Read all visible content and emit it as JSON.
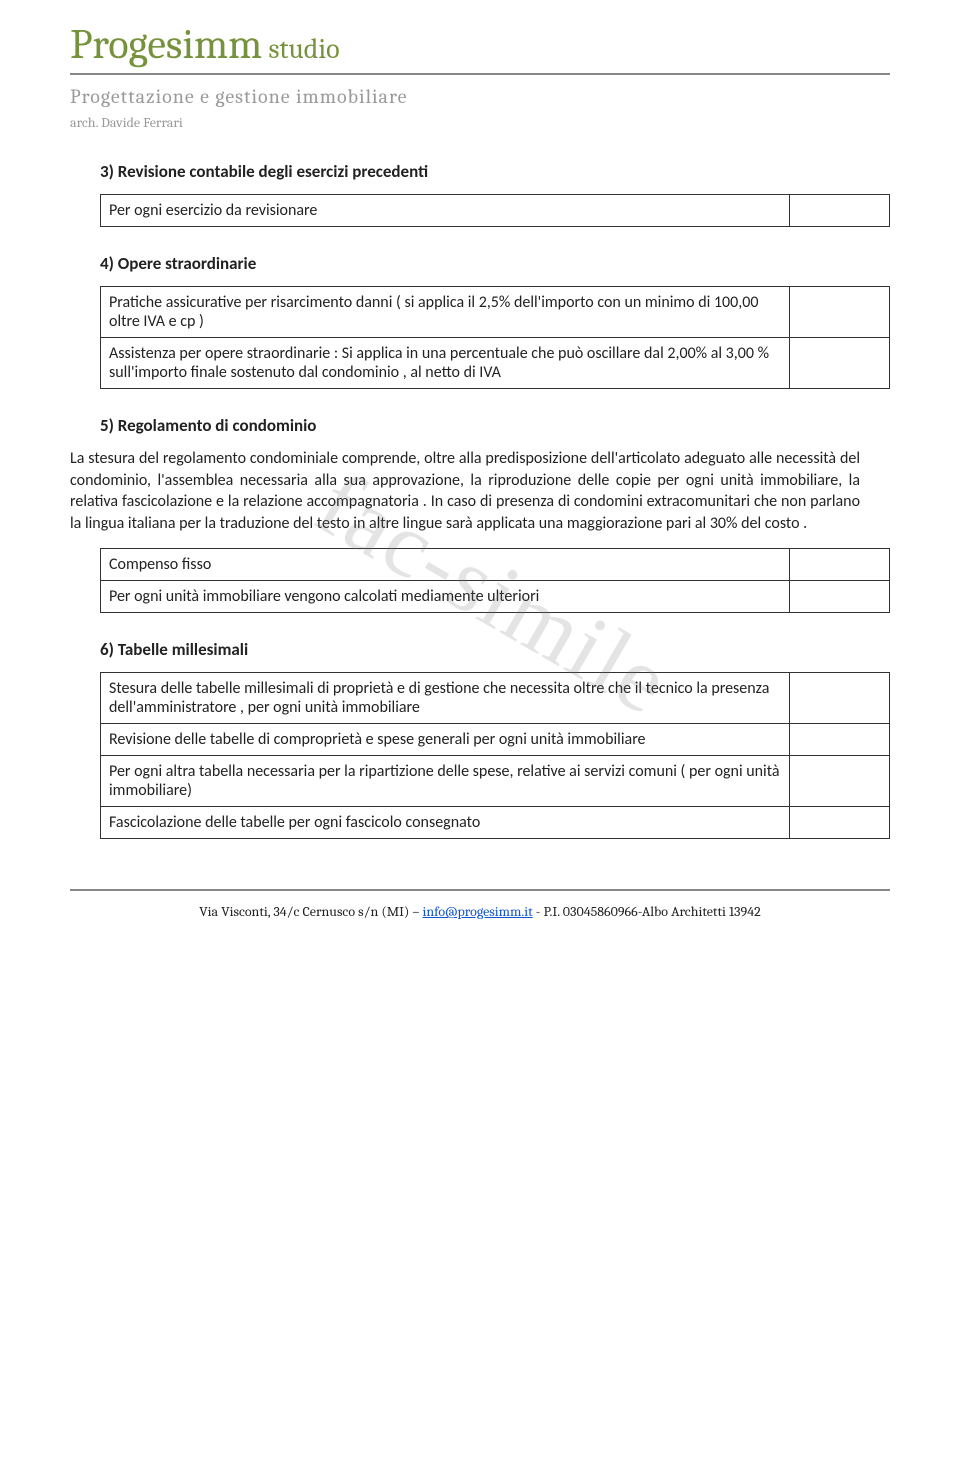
{
  "colors": {
    "accent_green": "#76923c",
    "gray_text": "#9a9a9a",
    "body_text": "#222222",
    "link_blue": "#1155cc",
    "border": "#333333",
    "watermark": "rgba(120,120,120,0.20)"
  },
  "header": {
    "logo_main": "Progesimm",
    "logo_sub": " studio",
    "tagline": "Progettazione  e  gestione  immobiliare",
    "author": "arch. Davide Ferrari"
  },
  "watermark": "fac-simile",
  "sections": {
    "s3": {
      "title": "3)   Revisione contabile degli esercizi precedenti",
      "rows": [
        {
          "text": "Per ogni esercizio da revisionare",
          "value": ""
        }
      ]
    },
    "s4": {
      "title": "4)   Opere straordinarie",
      "rows": [
        {
          "text": "Pratiche assicurative per risarcimento danni ( si applica il 2,5% dell'importo con un minimo di 100,00 oltre IVA e cp )",
          "value": ""
        },
        {
          "text": "Assistenza per opere straordinarie : Si applica in una percentuale che può oscillare dal 2,00% al 3,00 % sull'importo finale sostenuto dal condominio , al netto di IVA",
          "value": ""
        }
      ]
    },
    "s5": {
      "title": "5)   Regolamento di condominio",
      "body": "La stesura del regolamento condominiale comprende, oltre alla predisposizione dell'articolato adeguato alle necessità  del condominio, l'assemblea necessaria alla sua approvazione, la riproduzione delle copie per ogni unità immobiliare, la relativa fascicolazione e la relazione accompagnatoria . In caso di presenza di condomini extracomunitari che non parlano la lingua italiana per la traduzione del testo in altre lingue sarà applicata una maggiorazione pari al 30% del costo .",
      "rows": [
        {
          "text": "Compenso fisso",
          "value": ""
        },
        {
          "text": "Per ogni unità immobiliare vengono calcolati mediamente ulteriori",
          "value": ""
        }
      ]
    },
    "s6": {
      "title": "6)   Tabelle millesimali",
      "rows": [
        {
          "text": "Stesura delle tabelle millesimali di proprietà e di gestione che necessita oltre che il tecnico la presenza dell'amministratore , per ogni unità immobiliare",
          "value": ""
        },
        {
          "text": "Revisione delle tabelle di comproprietà e spese generali per ogni unità immobiliare",
          "value": ""
        },
        {
          "text": "Per ogni altra tabella necessaria per la ripartizione delle spese, relative ai servizi comuni ( per ogni unità immobiliare)",
          "value": ""
        },
        {
          "text": "Fascicolazione delle tabelle per ogni fascicolo consegnato",
          "value": ""
        }
      ]
    }
  },
  "footer": {
    "prefix": "Via Visconti, 34/c Cernusco s/n (MI) – ",
    "email": "info@progesimm.it",
    "suffix": " - P.I. 03045860966-Albo Architetti 13942"
  }
}
